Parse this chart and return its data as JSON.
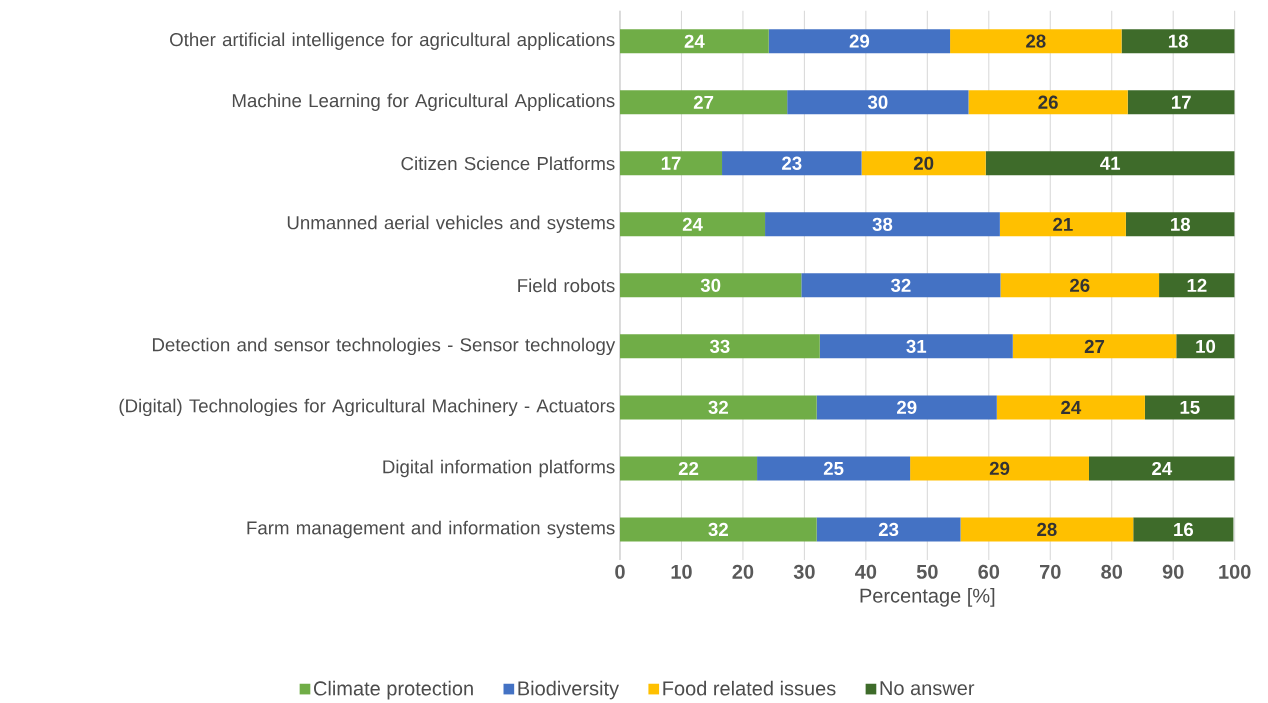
{
  "chart_data": {
    "type": "bar",
    "orientation": "horizontal",
    "stacked": true,
    "grid": "x",
    "legend": "bottom",
    "xlabel": "Percentage [%]",
    "categories": [
      "Other artificial intelligence for agricultural applications",
      "Machine Learning for Agricultural Applications",
      "Citizen Science Platforms",
      "Unmanned aerial vehicles and systems",
      "Field robots",
      "Detection and sensor technologies - Sensor technology",
      "(Digital) Technologies for Agricultural Machinery - Actuators",
      "Digital information platforms",
      "Farm management and information systems"
    ],
    "xlim": [
      0,
      100
    ],
    "xticks": [
      0,
      10,
      20,
      30,
      40,
      50,
      60,
      70,
      80,
      90,
      100
    ],
    "series": [
      {
        "name": "Climate protection",
        "color": "#70ad47",
        "values": [
          24.2,
          27.2,
          16.6,
          23.6,
          29.5,
          32.5,
          32.0,
          22.3,
          32.0
        ],
        "value_labels": [
          "24",
          "27",
          "17",
          "24",
          "30",
          "33",
          "32",
          "22",
          "32"
        ]
      },
      {
        "name": "Biodiversity",
        "color": "#4472c4",
        "values": [
          29.5,
          29.5,
          22.7,
          38.2,
          32.4,
          31.4,
          29.3,
          24.9,
          23.4
        ],
        "value_labels": [
          "29",
          "30",
          "23",
          "38",
          "32",
          "31",
          "29",
          "25",
          "23"
        ]
      },
      {
        "name": "Food related issues",
        "color": "#ffc000",
        "values": [
          27.9,
          25.9,
          20.2,
          20.5,
          25.8,
          26.6,
          24.1,
          29.1,
          28.1
        ],
        "value_labels": [
          "28",
          "26",
          "20",
          "21",
          "26",
          "27",
          "24",
          "29",
          "28"
        ]
      },
      {
        "name": "No answer",
        "color": "#3e6b2a",
        "values": [
          18.4,
          17.4,
          40.5,
          17.7,
          12.3,
          9.5,
          14.6,
          23.7,
          16.3
        ],
        "value_labels": [
          "18",
          "17",
          "41",
          "18",
          "12",
          "10",
          "15",
          "24",
          "16"
        ]
      }
    ]
  }
}
